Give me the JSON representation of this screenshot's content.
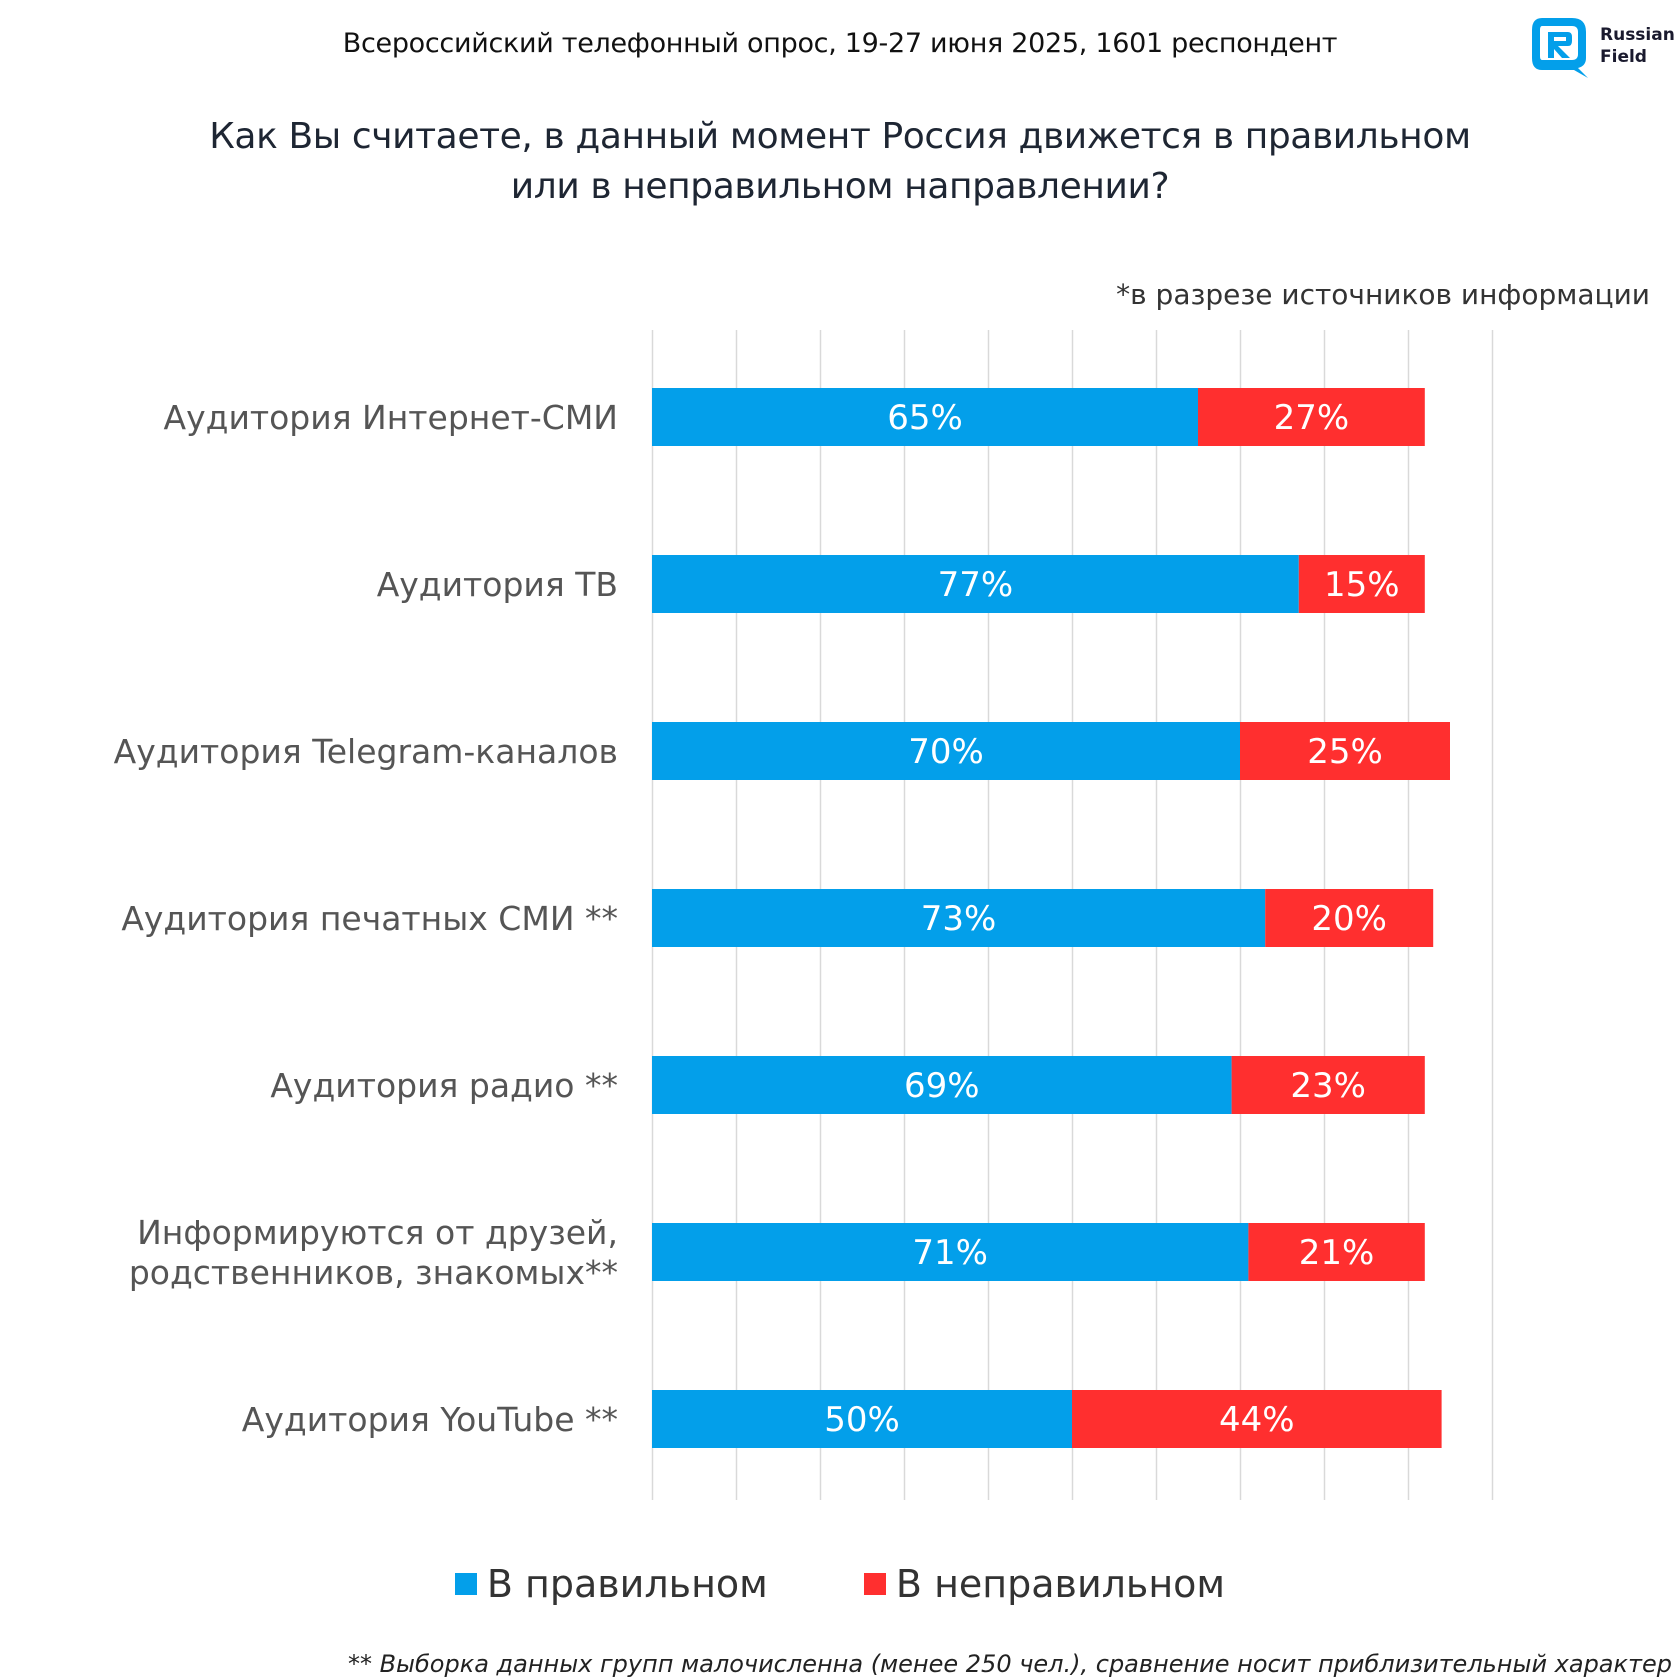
{
  "header": {
    "survey_info": "Всероссийский телефонный опрос, 19-27 июня 2025, 1601 респондент",
    "logo_text_line1": "Russian",
    "logo_text_line2": "Field",
    "title_line1": "Как Вы считаете, в данный момент Россия движется в правильном",
    "title_line2": "или в неправильном направлении?",
    "note": "*в разрезе источников информации"
  },
  "footnote": "** Выборка данных групп малочисленна (менее 250 чел.), сравнение носит приблизительный характер",
  "colors": {
    "right": "#039FEA",
    "wrong": "#FF2F2F",
    "grid": "#D9D9D9"
  },
  "chart_data": {
    "type": "bar",
    "orientation": "horizontal",
    "stacked": true,
    "title": "Как Вы считаете, в данный момент Россия движется в правильном или в неправильном направлении?",
    "subtitle": "*в разрезе источников информации",
    "categories": [
      [
        "Аудитория Интернет-СМИ"
      ],
      [
        "Аудитория ТВ"
      ],
      [
        "Аудитория Telegram-каналов"
      ],
      [
        "Аудитория печатных СМИ **"
      ],
      [
        "Аудитория радио **"
      ],
      [
        "Информируются от друзей,",
        "родственников, знакомых**"
      ],
      [
        "Аудитория YouTube **"
      ]
    ],
    "series": [
      {
        "name": "В правильном",
        "values": [
          65,
          77,
          70,
          73,
          69,
          71,
          50
        ],
        "labels": [
          "65%",
          "77%",
          "70%",
          "73%",
          "69%",
          "71%",
          "50%"
        ]
      },
      {
        "name": "В неправильном",
        "values": [
          27,
          15,
          25,
          20,
          23,
          21,
          44
        ],
        "labels": [
          "27%",
          "15%",
          "25%",
          "20%",
          "23%",
          "21%",
          "44%"
        ]
      }
    ],
    "xlim": [
      0,
      100
    ],
    "xgrid_step": 10,
    "grid": true,
    "axis_tick_labels_shown": false,
    "legend_position": "bottom"
  }
}
